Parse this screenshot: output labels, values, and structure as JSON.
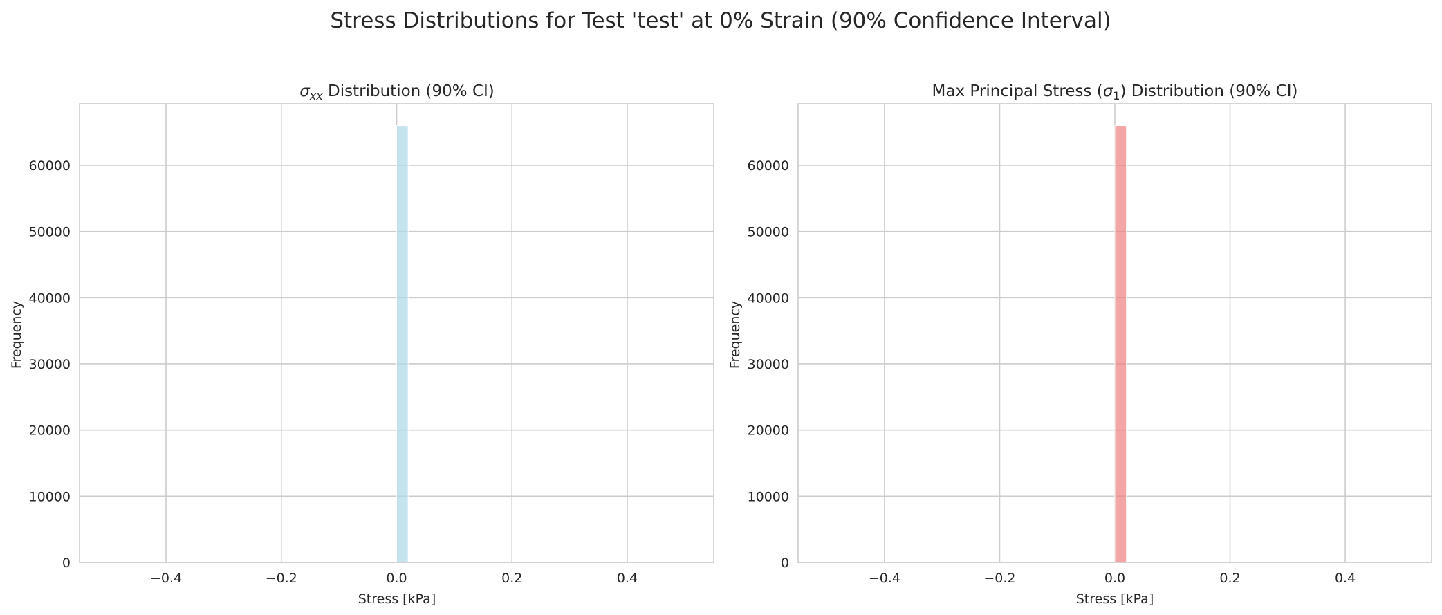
{
  "figure_title": "Stress Distributions for Test 'test' at 0% Strain (90% Confidence Interval)",
  "chart_data": [
    {
      "type": "bar",
      "title": "σxx Distribution (90% CI)",
      "title_parts": {
        "symbol": "σ",
        "subscript": "xx",
        "rest": " Distribution (90% CI)"
      },
      "xlabel": "Stress [kPa]",
      "ylabel": "Frequency",
      "xlim": [
        -0.55,
        0.55
      ],
      "ylim": [
        0,
        69300
      ],
      "xticks": [
        -0.4,
        -0.2,
        0.0,
        0.2,
        0.4
      ],
      "xtick_labels": [
        "−0.4",
        "−0.2",
        "0.0",
        "0.2",
        "0.4"
      ],
      "yticks": [
        0,
        10000,
        20000,
        30000,
        40000,
        50000,
        60000
      ],
      "ytick_labels": [
        "0",
        "10000",
        "20000",
        "30000",
        "40000",
        "50000",
        "60000"
      ],
      "grid": true,
      "bars": [
        {
          "x0": 0.0,
          "x1": 0.02,
          "value": 66000
        }
      ],
      "color": "#add8e6"
    },
    {
      "type": "bar",
      "title": "Max Principal Stress (σ1) Distribution (90% CI)",
      "title_parts": {
        "prefix": "Max Principal Stress (",
        "symbol": "σ",
        "subscript": "1",
        "rest": ") Distribution (90% CI)"
      },
      "xlabel": "Stress [kPa]",
      "ylabel": "Frequency",
      "xlim": [
        -0.55,
        0.55
      ],
      "ylim": [
        0,
        69300
      ],
      "xticks": [
        -0.4,
        -0.2,
        0.0,
        0.2,
        0.4
      ],
      "xtick_labels": [
        "−0.4",
        "−0.2",
        "0.0",
        "0.2",
        "0.4"
      ],
      "yticks": [
        0,
        10000,
        20000,
        30000,
        40000,
        50000,
        60000
      ],
      "ytick_labels": [
        "0",
        "10000",
        "20000",
        "30000",
        "40000",
        "50000",
        "60000"
      ],
      "grid": true,
      "bars": [
        {
          "x0": 0.0,
          "x1": 0.02,
          "value": 66000
        }
      ],
      "color": "#f08080"
    }
  ]
}
